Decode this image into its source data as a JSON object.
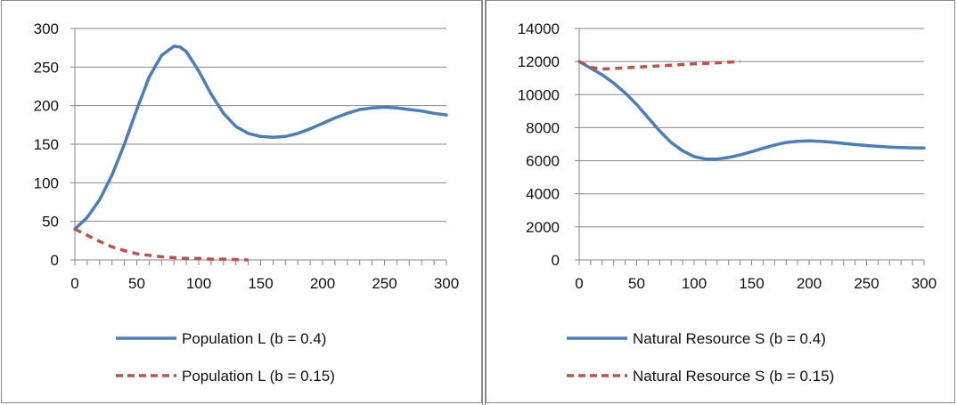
{
  "colors": {
    "series_solid": "#4A7EBB",
    "series_dashed": "#C0504D",
    "grid": "#868686",
    "axis": "#868686"
  },
  "chart_data": [
    {
      "type": "line",
      "title": "",
      "xlabel": "",
      "ylabel": "",
      "xlim": [
        0,
        300
      ],
      "ylim": [
        0,
        300
      ],
      "x_ticks": [
        0,
        50,
        100,
        150,
        200,
        250,
        300
      ],
      "y_ticks": [
        0,
        50,
        100,
        150,
        200,
        250,
        300
      ],
      "x_tick_labels": [
        "0",
        "50",
        "100",
        "150",
        "200",
        "250",
        "300"
      ],
      "y_tick_labels": [
        "0",
        "50",
        "100",
        "150",
        "200",
        "250",
        "300"
      ],
      "grid": "horizontal",
      "legend_position": "bottom",
      "series": [
        {
          "name": "Population L (b = 0.4)",
          "style": "solid",
          "x": [
            0,
            10,
            20,
            30,
            40,
            50,
            60,
            70,
            80,
            85,
            90,
            100,
            110,
            120,
            130,
            140,
            150,
            160,
            170,
            180,
            190,
            200,
            210,
            220,
            230,
            240,
            250,
            260,
            270,
            280,
            290,
            300
          ],
          "y": [
            40,
            55,
            78,
            110,
            150,
            195,
            237,
            265,
            277,
            276,
            270,
            245,
            215,
            190,
            173,
            164,
            160,
            159,
            160,
            164,
            170,
            177,
            184,
            190,
            195,
            197,
            198,
            197,
            195,
            193,
            190,
            188
          ]
        },
        {
          "name": "Population L (b = 0.15)",
          "style": "dashed",
          "x": [
            0,
            10,
            20,
            30,
            40,
            50,
            60,
            70,
            80,
            90,
            100,
            110,
            120,
            130,
            140
          ],
          "y": [
            40,
            32,
            24,
            17,
            12,
            8,
            6,
            4,
            3,
            2,
            2,
            1,
            1,
            0.5,
            0
          ]
        }
      ]
    },
    {
      "type": "line",
      "title": "",
      "xlabel": "",
      "ylabel": "",
      "xlim": [
        0,
        300
      ],
      "ylim": [
        0,
        14000
      ],
      "x_ticks": [
        0,
        50,
        100,
        150,
        200,
        250,
        300
      ],
      "y_ticks": [
        0,
        2000,
        4000,
        6000,
        8000,
        10000,
        12000,
        14000
      ],
      "x_tick_labels": [
        "0",
        "50",
        "100",
        "150",
        "200",
        "250",
        "300"
      ],
      "y_tick_labels": [
        "0",
        "2000",
        "4000",
        "6000",
        "8000",
        "10000",
        "12000",
        "14000"
      ],
      "grid": "horizontal",
      "legend_position": "bottom",
      "series": [
        {
          "name": "Natural Resource S (b = 0.4)",
          "style": "solid",
          "x": [
            0,
            10,
            20,
            30,
            40,
            50,
            60,
            70,
            80,
            90,
            100,
            110,
            120,
            130,
            140,
            150,
            160,
            170,
            180,
            190,
            200,
            210,
            220,
            230,
            240,
            250,
            260,
            270,
            280,
            290,
            300
          ],
          "y": [
            12000,
            11600,
            11200,
            10700,
            10100,
            9400,
            8600,
            7800,
            7100,
            6600,
            6250,
            6100,
            6100,
            6200,
            6350,
            6550,
            6750,
            6950,
            7100,
            7180,
            7200,
            7180,
            7120,
            7050,
            6980,
            6920,
            6870,
            6830,
            6800,
            6780,
            6770
          ]
        },
        {
          "name": "Natural Resource S (b = 0.15)",
          "style": "dashed",
          "x": [
            0,
            10,
            20,
            30,
            40,
            50,
            60,
            70,
            80,
            90,
            100,
            110,
            120,
            130,
            140
          ],
          "y": [
            12000,
            11650,
            11550,
            11580,
            11620,
            11660,
            11700,
            11740,
            11780,
            11820,
            11860,
            11890,
            11920,
            11960,
            12000
          ]
        }
      ]
    }
  ]
}
